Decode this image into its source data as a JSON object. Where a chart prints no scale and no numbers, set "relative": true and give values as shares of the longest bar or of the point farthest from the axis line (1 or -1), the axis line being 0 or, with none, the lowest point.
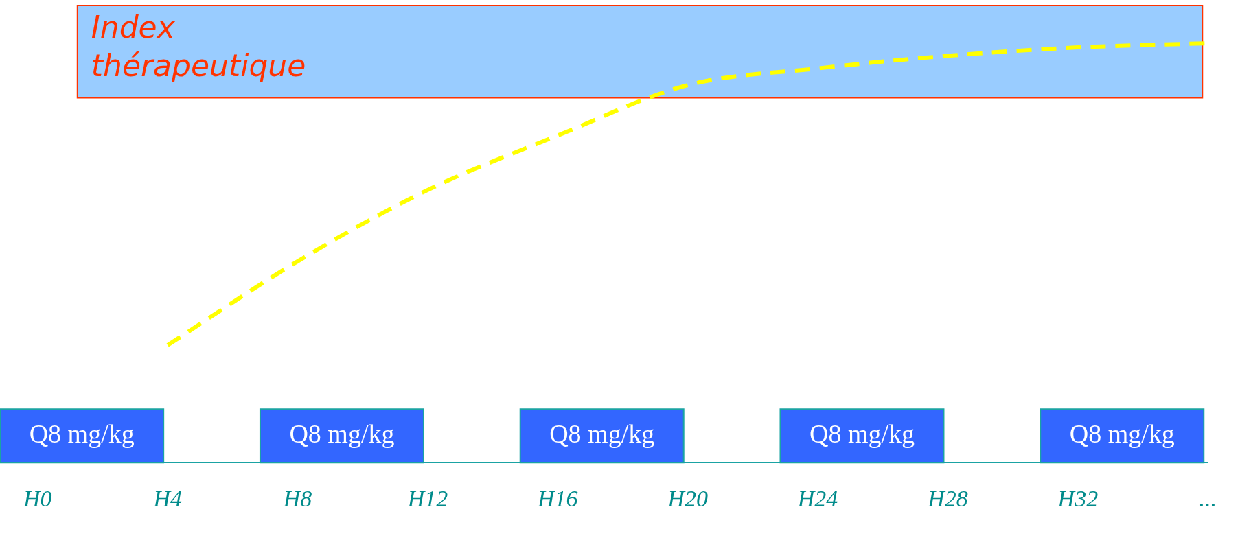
{
  "chart_data": {
    "type": "line",
    "relative": true,
    "legend": false,
    "grid": false,
    "marker": "none",
    "line_style": "dashed",
    "categories": [
      "H0",
      "H4",
      "H8",
      "H12",
      "H16",
      "H20",
      "H24",
      "H28",
      "H32",
      "..."
    ],
    "series": [
      {
        "color": "#ffff00",
        "values": [
          null,
          0.28,
          0.48,
          0.65,
          0.78,
          0.9,
          0.94,
          0.97,
          0.99,
          1
        ]
      }
    ],
    "bands": [
      {
        "axis": "y",
        "from": 0.87,
        "to": 1.09,
        "label": "Index thérapeutique",
        "color": "#99ccff"
      }
    ],
    "annotations": [
      "Q8 mg/kg",
      "Q8 mg/kg",
      "Q8 mg/kg",
      "Q8 mg/kg",
      "Q8 mg/kg"
    ]
  }
}
